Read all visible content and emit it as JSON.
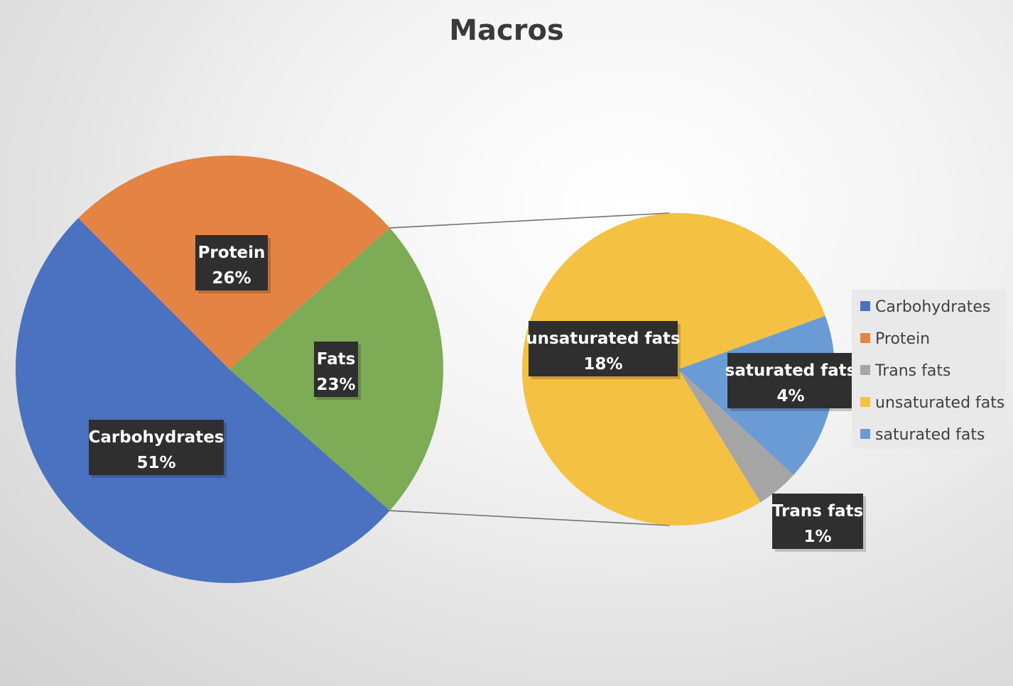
{
  "chart_data": {
    "type": "pie",
    "subtype": "pie-of-pie",
    "title": "Macros",
    "primary": {
      "slices": [
        {
          "label": "Carbohydrates",
          "value": 51,
          "display": "51%",
          "color": "#4a72c0"
        },
        {
          "label": "Protein",
          "value": 26,
          "display": "26%",
          "color": "#e38444"
        },
        {
          "label": "Fats",
          "value": 23,
          "display": "23%",
          "color": "#7eab55"
        }
      ]
    },
    "secondary": {
      "parent": "Fats",
      "slices": [
        {
          "label": "unsaturated fats",
          "value": 18,
          "display": "18%",
          "color": "#f5c142"
        },
        {
          "label": "saturated fats",
          "value": 4,
          "display": "4%",
          "color": "#6b9bd4"
        },
        {
          "label": "Trans fats",
          "value": 1,
          "display": "1%",
          "color": "#a5a5a5"
        }
      ]
    },
    "legend": {
      "position": "right",
      "items": [
        {
          "label": "Carbohydrates",
          "color": "#4a72c0"
        },
        {
          "label": "Protein",
          "color": "#e38444"
        },
        {
          "label": "Trans fats",
          "color": "#a5a5a5"
        },
        {
          "label": "unsaturated fats",
          "color": "#f5c142"
        },
        {
          "label": "saturated fats",
          "color": "#6b9bd4"
        }
      ]
    },
    "connector_color": "#707070"
  }
}
